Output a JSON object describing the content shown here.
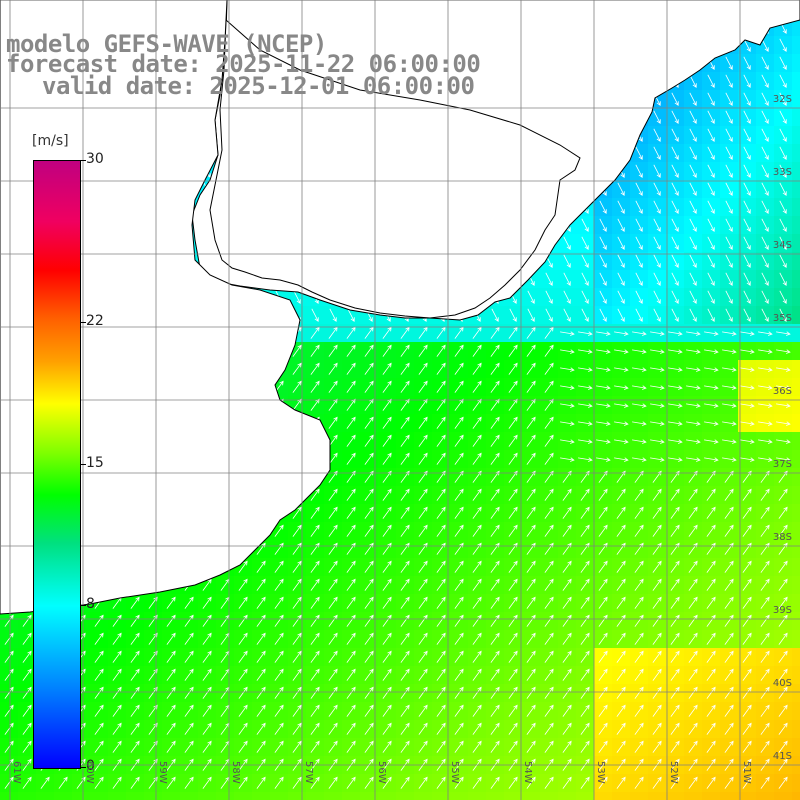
{
  "title": {
    "model": "modelo GEFS-WAVE (NCEP)",
    "forecast": "forecast date: 2025-11-22 06:00:00",
    "valid": "valid date: 2025-12-01 06:00:00"
  },
  "colorbar": {
    "unit": "[m/s]",
    "min": 0,
    "max": 30,
    "ticks": [
      {
        "value": 30,
        "label": "30"
      },
      {
        "value": 22,
        "label": "22"
      },
      {
        "value": 15,
        "label": "15"
      },
      {
        "value": 8,
        "label": "8"
      },
      {
        "value": 0,
        "label": "0"
      }
    ]
  },
  "map": {
    "variable": "wind speed and direction",
    "lat_labels": [
      "32S",
      "33S",
      "34S",
      "35S",
      "36S",
      "37S",
      "38S",
      "39S",
      "40S",
      "41S"
    ],
    "lon_labels": [
      "61W",
      "60W",
      "59W",
      "58W",
      "57W",
      "56W",
      "55W",
      "54W",
      "53W",
      "52W",
      "51W"
    ],
    "colors": {
      "land": "#ffffff",
      "coast": "#000000",
      "grid": "#808080",
      "arrow": "#ffffff"
    }
  }
}
